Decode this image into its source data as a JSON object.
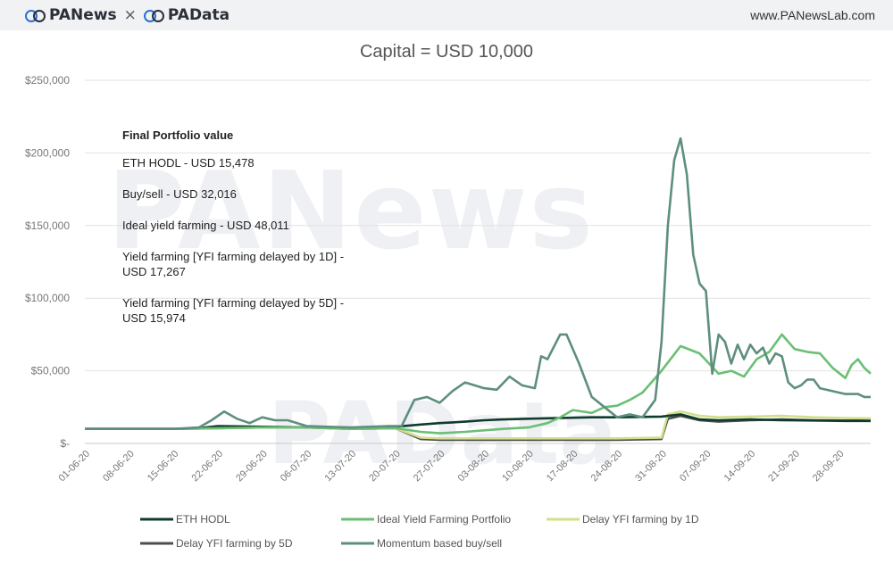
{
  "header": {
    "brand_left": "PANews",
    "times": "×",
    "brand_right": "PAData",
    "site": "www.PANewsLab.com"
  },
  "chart_data": {
    "type": "line",
    "title": "Capital = USD 10,000",
    "xlabel": "",
    "ylabel": "",
    "ylim": [
      0,
      250000
    ],
    "y_ticks": [
      0,
      50000,
      100000,
      150000,
      200000,
      250000
    ],
    "y_tick_labels": [
      "$-",
      "$50,000",
      "$100,000",
      "$150,000",
      "$200,000",
      "$250,000"
    ],
    "x_range": [
      0,
      124
    ],
    "x_ticks": [
      0,
      7,
      14,
      21,
      28,
      35,
      42,
      49,
      56,
      63,
      70,
      77,
      84,
      91,
      98,
      105,
      112,
      119
    ],
    "x_tick_labels": [
      "01-06-20",
      "08-06-20",
      "15-06-20",
      "22-06-20",
      "29-06-20",
      "06-07-20",
      "13-07-20",
      "20-07-20",
      "27-07-20",
      "03-08-20",
      "10-08-20",
      "17-08-20",
      "24-08-20",
      "31-08-20",
      "07-09-20",
      "14-09-20",
      "21-09-20",
      "28-09-20"
    ],
    "grid": true,
    "legend_position": "bottom",
    "annotation": {
      "heading": "Final Portfolio value",
      "lines": [
        "ETH HODL - USD 15,478",
        "Buy/sell - USD 32,016",
        "Ideal yield farming - USD 48,011",
        "Yield farming [YFI farming delayed by 1D] - USD 17,267",
        "Yield farming [YFI farming delayed by 5D] - USD 15,974"
      ]
    },
    "series": [
      {
        "name": "ETH HODL",
        "color": "#0f3b2c",
        "points": [
          [
            0,
            10000
          ],
          [
            7,
            10000
          ],
          [
            14,
            10000
          ],
          [
            18,
            10500
          ],
          [
            21,
            12000
          ],
          [
            28,
            11500
          ],
          [
            35,
            11000
          ],
          [
            42,
            10500
          ],
          [
            49,
            11500
          ],
          [
            53,
            13000
          ],
          [
            56,
            14000
          ],
          [
            60,
            15000
          ],
          [
            63,
            16000
          ],
          [
            66,
            16500
          ],
          [
            70,
            17000
          ],
          [
            75,
            17500
          ],
          [
            80,
            18000
          ],
          [
            84,
            18000
          ],
          [
            91,
            18500
          ],
          [
            94,
            20000
          ],
          [
            97,
            16500
          ],
          [
            100,
            16000
          ],
          [
            105,
            16500
          ],
          [
            110,
            16000
          ],
          [
            115,
            15800
          ],
          [
            120,
            15500
          ],
          [
            124,
            15478
          ]
        ]
      },
      {
        "name": "Ideal Yield Farming Portfolio",
        "color": "#6abf74",
        "points": [
          [
            0,
            10000
          ],
          [
            14,
            10000
          ],
          [
            21,
            10500
          ],
          [
            28,
            11000
          ],
          [
            35,
            11000
          ],
          [
            42,
            10000
          ],
          [
            49,
            10500
          ],
          [
            53,
            8000
          ],
          [
            56,
            7000
          ],
          [
            60,
            8000
          ],
          [
            63,
            9000
          ],
          [
            66,
            10000
          ],
          [
            70,
            11000
          ],
          [
            73,
            14000
          ],
          [
            75,
            18000
          ],
          [
            77,
            23000
          ],
          [
            80,
            21000
          ],
          [
            82,
            25000
          ],
          [
            84,
            26000
          ],
          [
            86,
            30000
          ],
          [
            88,
            35000
          ],
          [
            91,
            50000
          ],
          [
            94,
            67000
          ],
          [
            97,
            62000
          ],
          [
            100,
            48000
          ],
          [
            102,
            50000
          ],
          [
            104,
            46000
          ],
          [
            106,
            58000
          ],
          [
            108,
            63000
          ],
          [
            110,
            75000
          ],
          [
            112,
            65000
          ],
          [
            114,
            63000
          ],
          [
            116,
            62000
          ],
          [
            118,
            52000
          ],
          [
            120,
            45000
          ],
          [
            121,
            54000
          ],
          [
            122,
            58000
          ],
          [
            123,
            52000
          ],
          [
            124,
            48011
          ]
        ]
      },
      {
        "name": "Delay YFI farming by 1D",
        "color": "#d4de8a",
        "points": [
          [
            0,
            10000
          ],
          [
            14,
            10000
          ],
          [
            21,
            10500
          ],
          [
            28,
            11000
          ],
          [
            35,
            11000
          ],
          [
            42,
            10000
          ],
          [
            49,
            10500
          ],
          [
            53,
            4000
          ],
          [
            56,
            3500
          ],
          [
            60,
            3500
          ],
          [
            63,
            3500
          ],
          [
            70,
            3500
          ],
          [
            77,
            3500
          ],
          [
            84,
            3500
          ],
          [
            91,
            4000
          ],
          [
            92,
            20000
          ],
          [
            94,
            22000
          ],
          [
            97,
            19000
          ],
          [
            100,
            18000
          ],
          [
            105,
            18500
          ],
          [
            110,
            19000
          ],
          [
            115,
            18000
          ],
          [
            120,
            17500
          ],
          [
            124,
            17267
          ]
        ]
      },
      {
        "name": "Delay YFI farming by 5D",
        "color": "#4a4f4d",
        "points": [
          [
            0,
            10000
          ],
          [
            14,
            10000
          ],
          [
            21,
            10500
          ],
          [
            28,
            11000
          ],
          [
            35,
            11000
          ],
          [
            42,
            10000
          ],
          [
            49,
            10500
          ],
          [
            53,
            3000
          ],
          [
            56,
            2500
          ],
          [
            63,
            2500
          ],
          [
            70,
            2500
          ],
          [
            77,
            2500
          ],
          [
            84,
            2500
          ],
          [
            91,
            3000
          ],
          [
            92,
            17000
          ],
          [
            94,
            19000
          ],
          [
            97,
            16000
          ],
          [
            100,
            15000
          ],
          [
            105,
            16000
          ],
          [
            110,
            16500
          ],
          [
            115,
            16000
          ],
          [
            120,
            15800
          ],
          [
            124,
            15974
          ]
        ]
      },
      {
        "name": "Momentum based buy/sell",
        "color": "#5e8f7e",
        "points": [
          [
            0,
            10000
          ],
          [
            7,
            10000
          ],
          [
            14,
            10000
          ],
          [
            18,
            11000
          ],
          [
            20,
            16000
          ],
          [
            22,
            22000
          ],
          [
            24,
            17000
          ],
          [
            26,
            14000
          ],
          [
            28,
            18000
          ],
          [
            30,
            16000
          ],
          [
            32,
            16000
          ],
          [
            35,
            12000
          ],
          [
            42,
            11000
          ],
          [
            48,
            12000
          ],
          [
            50,
            12000
          ],
          [
            52,
            30000
          ],
          [
            54,
            32000
          ],
          [
            56,
            28000
          ],
          [
            58,
            36000
          ],
          [
            60,
            42000
          ],
          [
            63,
            38000
          ],
          [
            65,
            37000
          ],
          [
            67,
            46000
          ],
          [
            69,
            40000
          ],
          [
            71,
            38000
          ],
          [
            72,
            60000
          ],
          [
            73,
            58000
          ],
          [
            75,
            75000
          ],
          [
            76,
            75000
          ],
          [
            78,
            55000
          ],
          [
            80,
            32000
          ],
          [
            82,
            25000
          ],
          [
            84,
            18000
          ],
          [
            86,
            20000
          ],
          [
            88,
            18000
          ],
          [
            90,
            30000
          ],
          [
            91,
            70000
          ],
          [
            92,
            150000
          ],
          [
            93,
            195000
          ],
          [
            94,
            210000
          ],
          [
            95,
            185000
          ],
          [
            96,
            130000
          ],
          [
            97,
            110000
          ],
          [
            98,
            105000
          ],
          [
            99,
            48000
          ],
          [
            100,
            75000
          ],
          [
            101,
            70000
          ],
          [
            102,
            55000
          ],
          [
            103,
            68000
          ],
          [
            104,
            58000
          ],
          [
            105,
            68000
          ],
          [
            106,
            62000
          ],
          [
            107,
            66000
          ],
          [
            108,
            55000
          ],
          [
            109,
            62000
          ],
          [
            110,
            60000
          ],
          [
            111,
            42000
          ],
          [
            112,
            38000
          ],
          [
            113,
            40000
          ],
          [
            114,
            44000
          ],
          [
            115,
            44000
          ],
          [
            116,
            38000
          ],
          [
            118,
            36000
          ],
          [
            120,
            34000
          ],
          [
            122,
            34000
          ],
          [
            123,
            32000
          ],
          [
            124,
            32016
          ]
        ]
      }
    ]
  }
}
